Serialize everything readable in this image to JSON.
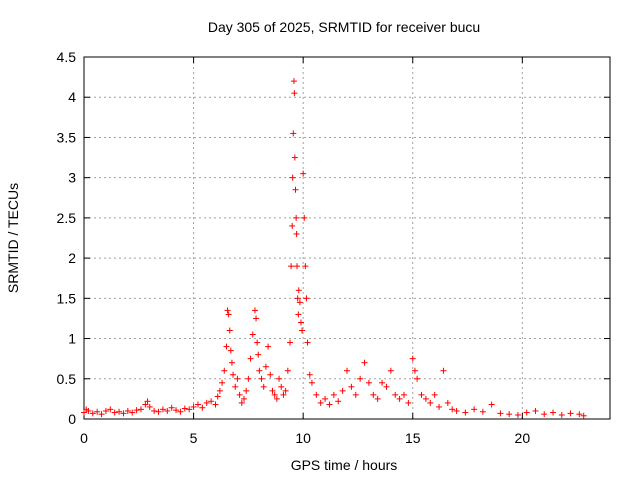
{
  "chart_data": {
    "type": "scatter",
    "title": "Day 305 of 2025, SRMTID for receiver bucu",
    "xlabel": "GPS time / hours",
    "ylabel": "SRMTID / TECUs",
    "xlim": [
      0,
      24
    ],
    "ylim": [
      0,
      4.5
    ],
    "x_ticks": [
      0,
      5,
      10,
      15,
      20
    ],
    "x_tick_labels": [
      "0",
      "5",
      "10",
      "15",
      "20"
    ],
    "y_ticks": [
      0,
      0.5,
      1,
      1.5,
      2,
      2.5,
      3,
      3.5,
      4,
      4.5
    ],
    "y_tick_labels": [
      "0",
      "0.5",
      "1",
      "1.5",
      "2",
      "2.5",
      "3",
      "3.5",
      "4",
      "4.5"
    ],
    "grid": true,
    "marker": "plus",
    "color": "#ff0000",
    "series": [
      {
        "x": [
          0.0,
          0.1,
          0.2,
          0.4,
          0.6,
          0.8,
          1.0,
          1.2,
          1.4,
          1.6,
          1.8,
          2.0,
          2.2,
          2.4,
          2.6,
          2.8,
          2.9,
          3.0,
          3.2,
          3.4,
          3.6,
          3.8,
          4.0,
          4.2,
          4.4,
          4.6,
          4.8,
          5.0,
          5.2,
          5.4,
          5.6,
          5.8,
          6.0,
          6.1,
          6.2,
          6.3,
          6.4,
          6.5,
          6.55,
          6.6,
          6.65,
          6.7,
          6.75,
          6.8,
          6.9,
          7.0,
          7.1,
          7.2,
          7.3,
          7.4,
          7.5,
          7.6,
          7.7,
          7.8,
          7.85,
          7.9,
          7.95,
          8.0,
          8.1,
          8.2,
          8.3,
          8.4,
          8.5,
          8.6,
          8.7,
          8.8,
          8.9,
          9.0,
          9.1,
          9.2,
          9.3,
          9.4,
          9.45,
          9.5,
          9.52,
          9.55,
          9.58,
          9.6,
          9.62,
          9.65,
          9.68,
          9.7,
          9.72,
          9.75,
          9.78,
          9.8,
          9.85,
          9.9,
          9.95,
          10.0,
          10.05,
          10.1,
          10.15,
          10.2,
          10.3,
          10.4,
          10.6,
          10.8,
          11.0,
          11.2,
          11.4,
          11.6,
          11.8,
          12.0,
          12.2,
          12.4,
          12.6,
          12.8,
          13.0,
          13.2,
          13.4,
          13.6,
          13.8,
          14.0,
          14.2,
          14.4,
          14.6,
          14.8,
          15.0,
          15.1,
          15.2,
          15.4,
          15.6,
          15.8,
          16.0,
          16.2,
          16.4,
          16.6,
          16.8,
          17.0,
          17.4,
          17.8,
          18.2,
          18.6,
          19.0,
          19.4,
          19.8,
          20.2,
          20.6,
          21.0,
          21.4,
          21.8,
          22.2,
          22.6,
          22.8
        ],
        "y": [
          0.08,
          0.12,
          0.1,
          0.07,
          0.09,
          0.06,
          0.1,
          0.12,
          0.08,
          0.09,
          0.07,
          0.1,
          0.08,
          0.11,
          0.12,
          0.18,
          0.22,
          0.15,
          0.1,
          0.09,
          0.12,
          0.1,
          0.14,
          0.11,
          0.09,
          0.13,
          0.12,
          0.15,
          0.18,
          0.14,
          0.2,
          0.22,
          0.18,
          0.28,
          0.35,
          0.45,
          0.6,
          0.9,
          1.35,
          1.3,
          1.1,
          0.85,
          0.7,
          0.55,
          0.4,
          0.5,
          0.3,
          0.2,
          0.25,
          0.35,
          0.5,
          0.75,
          1.05,
          1.35,
          1.25,
          0.95,
          0.8,
          0.6,
          0.5,
          0.4,
          0.65,
          0.9,
          0.55,
          0.35,
          0.3,
          0.25,
          0.5,
          0.4,
          0.3,
          0.35,
          0.6,
          0.95,
          1.9,
          2.4,
          3.0,
          3.55,
          4.2,
          4.05,
          3.25,
          2.85,
          2.5,
          2.3,
          1.9,
          1.5,
          1.3,
          1.6,
          1.45,
          1.2,
          1.1,
          3.05,
          2.5,
          1.9,
          1.5,
          0.95,
          0.55,
          0.45,
          0.3,
          0.2,
          0.25,
          0.18,
          0.3,
          0.22,
          0.35,
          0.6,
          0.4,
          0.3,
          0.5,
          0.7,
          0.45,
          0.3,
          0.25,
          0.45,
          0.4,
          0.6,
          0.3,
          0.25,
          0.3,
          0.2,
          0.75,
          0.6,
          0.5,
          0.3,
          0.25,
          0.2,
          0.3,
          0.15,
          0.6,
          0.2,
          0.12,
          0.1,
          0.08,
          0.12,
          0.09,
          0.18,
          0.07,
          0.06,
          0.05,
          0.08,
          0.1,
          0.06,
          0.08,
          0.05,
          0.07,
          0.06,
          0.04
        ]
      }
    ]
  }
}
